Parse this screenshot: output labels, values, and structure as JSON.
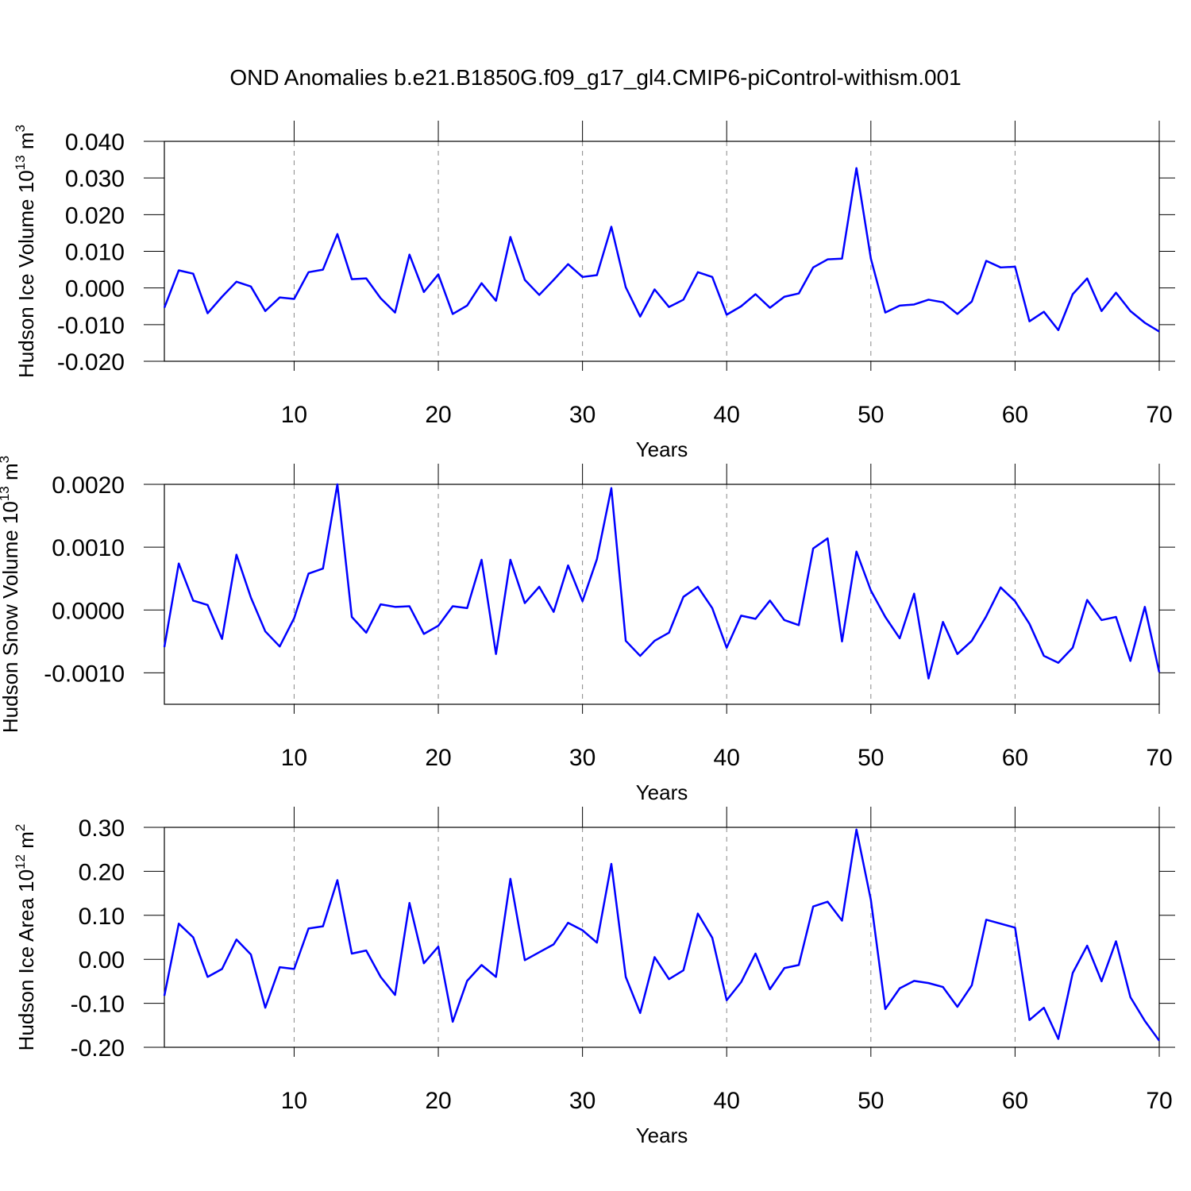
{
  "title": "OND Anomalies b.e21.B1850G.f09_g17_gl4.CMIP6-piControl-withism.001",
  "chart_data": [
    {
      "type": "line",
      "ylabel": [
        "Hudson Ice Volume 10",
        "13",
        " m",
        "3"
      ],
      "xlabel": "Years",
      "x": [
        1,
        2,
        3,
        4,
        5,
        6,
        7,
        8,
        9,
        10,
        11,
        12,
        13,
        14,
        15,
        16,
        17,
        18,
        19,
        20,
        21,
        22,
        23,
        24,
        25,
        26,
        27,
        28,
        29,
        30,
        31,
        32,
        33,
        34,
        35,
        36,
        37,
        38,
        39,
        40,
        41,
        42,
        43,
        44,
        45,
        46,
        47,
        48,
        49,
        50,
        51,
        52,
        53,
        54,
        55,
        56,
        57,
        58,
        59,
        60,
        61,
        62,
        63,
        64,
        65,
        66,
        67,
        68,
        69,
        70
      ],
      "series": [
        {
          "color": "#0000ff",
          "values": [
            -0.0054,
            0.0048,
            0.0039,
            -0.0069,
            -0.0024,
            0.0017,
            0.0004,
            -0.0063,
            -0.0026,
            -0.003,
            0.0043,
            0.005,
            0.0147,
            0.0024,
            0.0026,
            -0.0028,
            -0.0067,
            0.0091,
            -0.0011,
            0.0037,
            -0.0071,
            -0.0048,
            0.0013,
            -0.0035,
            0.0139,
            0.0022,
            -0.0019,
            0.0022,
            0.0065,
            0.003,
            0.0035,
            0.0167,
            0.0002,
            -0.0078,
            -0.0004,
            -0.0052,
            -0.0032,
            0.0043,
            0.003,
            -0.0073,
            -0.005,
            -0.0017,
            -0.0054,
            -0.0024,
            -0.0015,
            0.0056,
            0.0078,
            0.008,
            0.0327,
            0.008,
            -0.0067,
            -0.0048,
            -0.0045,
            -0.0032,
            -0.0039,
            -0.0071,
            -0.0037,
            0.0074,
            0.0056,
            0.0058,
            -0.0091,
            -0.0065,
            -0.0115,
            -0.0017,
            0.0026,
            -0.0063,
            -0.0013,
            -0.0063,
            -0.0095,
            -0.0119
          ]
        }
      ],
      "xlim": [
        1,
        70
      ],
      "xticks": [
        10,
        20,
        30,
        40,
        50,
        60,
        70
      ],
      "ylim": [
        -0.02,
        0.04
      ],
      "yticks": [
        {
          "value": -0.02,
          "label": "-0.020"
        },
        {
          "value": -0.01,
          "label": "-0.010"
        },
        {
          "value": 0,
          "label": "0.000"
        },
        {
          "value": 0.01,
          "label": "0.010"
        },
        {
          "value": 0.02,
          "label": "0.020"
        },
        {
          "value": 0.03,
          "label": "0.030"
        },
        {
          "value": 0.04,
          "label": "0.040"
        }
      ],
      "grid": true
    },
    {
      "type": "line",
      "ylabel": [
        "Hudson Snow Volume 10",
        "13",
        " m",
        "3"
      ],
      "xlabel": "Years",
      "x": [
        1,
        2,
        3,
        4,
        5,
        6,
        7,
        8,
        9,
        10,
        11,
        12,
        13,
        14,
        15,
        16,
        17,
        18,
        19,
        20,
        21,
        22,
        23,
        24,
        25,
        26,
        27,
        28,
        29,
        30,
        31,
        32,
        33,
        34,
        35,
        36,
        37,
        38,
        39,
        40,
        41,
        42,
        43,
        44,
        45,
        46,
        47,
        48,
        49,
        50,
        51,
        52,
        53,
        54,
        55,
        56,
        57,
        58,
        59,
        60,
        61,
        62,
        63,
        64,
        65,
        66,
        67,
        68,
        69,
        70
      ],
      "series": [
        {
          "color": "#0000ff",
          "values": [
            -0.00059,
            0.00074,
            0.00015,
            8e-05,
            -0.00046,
            0.00088,
            0.0002,
            -0.00034,
            -0.00058,
            -0.00013,
            0.00058,
            0.00066,
            0.002,
            -0.00011,
            -0.00036,
            9e-05,
            5e-05,
            6e-05,
            -0.00038,
            -0.00025,
            6e-05,
            3e-05,
            0.0008,
            -0.0007,
            0.0008,
            0.00011,
            0.00037,
            -3e-05,
            0.00071,
            0.00014,
            0.00081,
            0.00194,
            -0.00049,
            -0.00073,
            -0.00049,
            -0.00036,
            0.00021,
            0.00037,
            3e-05,
            -0.0006,
            -9e-05,
            -0.00014,
            0.00015,
            -0.00016,
            -0.00024,
            0.00098,
            0.00114,
            -0.0005,
            0.00093,
            0.00031,
            -0.00011,
            -0.00045,
            0.00026,
            -0.00109,
            -0.00019,
            -0.0007,
            -0.00049,
            -0.0001,
            0.00036,
            0.00014,
            -0.00022,
            -0.00073,
            -0.00084,
            -0.0006,
            0.00016,
            -0.00016,
            -0.00011,
            -0.00081,
            5e-05,
            -0.00099
          ]
        }
      ],
      "xlim": [
        1,
        70
      ],
      "xticks": [
        10,
        20,
        30,
        40,
        50,
        60,
        70
      ],
      "ylim": [
        -0.0015,
        0.002
      ],
      "yticks": [
        {
          "value": -0.001,
          "label": "-0.0010"
        },
        {
          "value": 0,
          "label": "0.0000"
        },
        {
          "value": 0.001,
          "label": "0.0010"
        },
        {
          "value": 0.002,
          "label": "0.0020"
        }
      ],
      "grid": true
    },
    {
      "type": "line",
      "ylabel": [
        "Hudson Ice Area 10",
        "12",
        " m",
        "2"
      ],
      "xlabel": "Years",
      "x": [
        1,
        2,
        3,
        4,
        5,
        6,
        7,
        8,
        9,
        10,
        11,
        12,
        13,
        14,
        15,
        16,
        17,
        18,
        19,
        20,
        21,
        22,
        23,
        24,
        25,
        26,
        27,
        28,
        29,
        30,
        31,
        32,
        33,
        34,
        35,
        36,
        37,
        38,
        39,
        40,
        41,
        42,
        43,
        44,
        45,
        46,
        47,
        48,
        49,
        50,
        51,
        52,
        53,
        54,
        55,
        56,
        57,
        58,
        59,
        60,
        61,
        62,
        63,
        64,
        65,
        66,
        67,
        68,
        69,
        70
      ],
      "series": [
        {
          "color": "#0000ff",
          "values": [
            -0.083,
            0.081,
            0.05,
            -0.04,
            -0.022,
            0.045,
            0.011,
            -0.11,
            -0.018,
            -0.022,
            0.07,
            0.075,
            0.18,
            0.013,
            0.02,
            -0.04,
            -0.081,
            0.128,
            -0.009,
            0.029,
            -0.142,
            -0.049,
            -0.013,
            -0.04,
            0.183,
            -0.002,
            0.016,
            0.034,
            0.083,
            0.066,
            0.038,
            0.217,
            -0.04,
            -0.122,
            0.005,
            -0.045,
            -0.025,
            0.104,
            0.049,
            -0.093,
            -0.052,
            0.013,
            -0.068,
            -0.02,
            -0.013,
            0.12,
            0.131,
            0.088,
            0.295,
            0.135,
            -0.113,
            -0.066,
            -0.049,
            -0.054,
            -0.063,
            -0.108,
            -0.059,
            0.09,
            0.081,
            0.072,
            -0.138,
            -0.11,
            -0.181,
            -0.031,
            0.031,
            -0.05,
            0.041,
            -0.086,
            -0.14,
            -0.185
          ]
        }
      ],
      "xlim": [
        1,
        70
      ],
      "xticks": [
        10,
        20,
        30,
        40,
        50,
        60,
        70
      ],
      "ylim": [
        -0.2,
        0.3
      ],
      "yticks": [
        {
          "value": -0.2,
          "label": "-0.20"
        },
        {
          "value": -0.1,
          "label": "-0.10"
        },
        {
          "value": 0,
          "label": "0.00"
        },
        {
          "value": 0.1,
          "label": "0.10"
        },
        {
          "value": 0.2,
          "label": "0.20"
        },
        {
          "value": 0.3,
          "label": "0.30"
        }
      ],
      "grid": true
    }
  ]
}
